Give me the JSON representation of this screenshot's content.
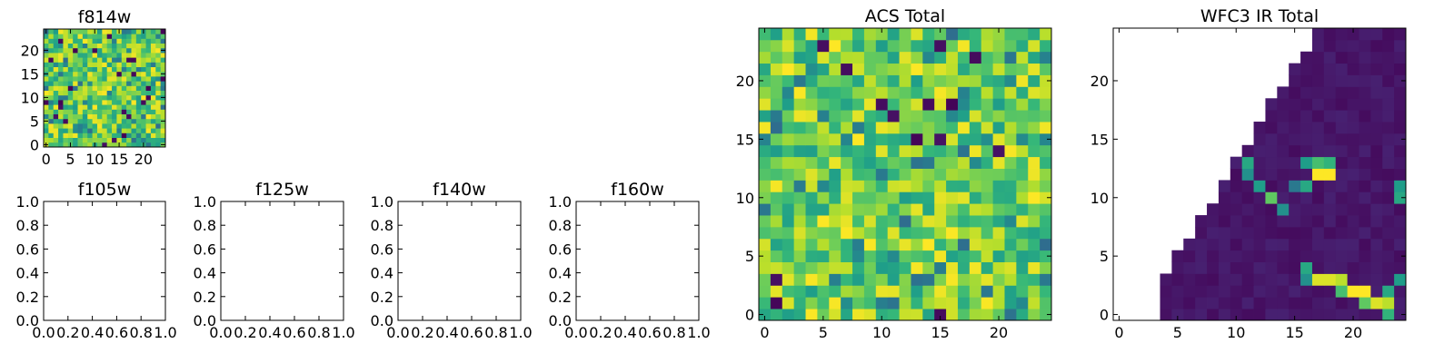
{
  "chart_data": [
    {
      "id": "f814w",
      "type": "heatmap",
      "title": "f814w",
      "colormap": "viridis",
      "xlim": [
        -0.5,
        24.5
      ],
      "ylim": [
        -0.5,
        24.5
      ],
      "xticks": [
        0,
        5,
        10,
        15,
        20
      ],
      "yticks": [
        0,
        5,
        10,
        15,
        20
      ],
      "grid_size": 25,
      "value_range": [
        0,
        1
      ],
      "pattern": "noise",
      "seed": 17
    },
    {
      "id": "f105w",
      "type": "empty",
      "title": "f105w",
      "xlim": [
        0,
        1
      ],
      "ylim": [
        0,
        1
      ],
      "xticks": [
        "0.0",
        "0.2",
        "0.4",
        "0.6",
        "0.8",
        "1.0"
      ],
      "yticks": [
        "0.0",
        "0.2",
        "0.4",
        "0.6",
        "0.8",
        "1.0"
      ]
    },
    {
      "id": "f125w",
      "type": "empty",
      "title": "f125w",
      "xlim": [
        0,
        1
      ],
      "ylim": [
        0,
        1
      ],
      "xticks": [
        "0.0",
        "0.2",
        "0.4",
        "0.6",
        "0.8",
        "1.0"
      ],
      "yticks": [
        "0.0",
        "0.2",
        "0.4",
        "0.6",
        "0.8",
        "1.0"
      ]
    },
    {
      "id": "f140w",
      "type": "empty",
      "title": "f140w",
      "xlim": [
        0,
        1
      ],
      "ylim": [
        0,
        1
      ],
      "xticks": [
        "0.0",
        "0.2",
        "0.4",
        "0.6",
        "0.8",
        "1.0"
      ],
      "yticks": [
        "0.0",
        "0.2",
        "0.4",
        "0.6",
        "0.8",
        "1.0"
      ]
    },
    {
      "id": "f160w",
      "type": "empty",
      "title": "f160w",
      "xlim": [
        0,
        1
      ],
      "ylim": [
        0,
        1
      ],
      "xticks": [
        "0.0",
        "0.2",
        "0.4",
        "0.6",
        "0.8",
        "1.0"
      ],
      "yticks": [
        "0.0",
        "0.2",
        "0.4",
        "0.6",
        "0.8",
        "1.0"
      ]
    },
    {
      "id": "acs_total",
      "type": "heatmap",
      "title": "ACS Total",
      "colormap": "viridis",
      "xlim": [
        -0.5,
        24.5
      ],
      "ylim": [
        -0.5,
        24.5
      ],
      "xticks": [
        0,
        5,
        10,
        15,
        20
      ],
      "yticks": [
        0,
        5,
        10,
        15,
        20
      ],
      "grid_size": 25,
      "value_range": [
        0,
        1
      ],
      "pattern": "noise",
      "seed": 42
    },
    {
      "id": "wfc3_ir_total",
      "type": "heatmap",
      "title": "WFC3 IR Total",
      "colormap": "viridis",
      "xlim": [
        -0.5,
        24.5
      ],
      "ylim": [
        -0.5,
        24.5
      ],
      "xticks": [
        0,
        5,
        10,
        15,
        20
      ],
      "yticks": [
        0,
        5,
        10,
        15,
        20
      ],
      "grid_size": 25,
      "value_range": [
        0,
        1
      ],
      "pattern": "masked-wedge",
      "mask_boundary_x_by_row": [
        4,
        4,
        4,
        4,
        5,
        5,
        6,
        7,
        7,
        8,
        9,
        9,
        10,
        10,
        11,
        12,
        12,
        13,
        13,
        14,
        15,
        15,
        16,
        17,
        17
      ],
      "bright_cells": [
        {
          "x": 10,
          "y": 14,
          "v": 0.45
        },
        {
          "x": 11,
          "y": 13,
          "v": 0.6
        },
        {
          "x": 11,
          "y": 12,
          "v": 0.5
        },
        {
          "x": 12,
          "y": 11,
          "v": 0.55
        },
        {
          "x": 13,
          "y": 10,
          "v": 0.75
        },
        {
          "x": 14,
          "y": 9,
          "v": 0.5
        },
        {
          "x": 16,
          "y": 13,
          "v": 0.55
        },
        {
          "x": 17,
          "y": 13,
          "v": 0.7
        },
        {
          "x": 17,
          "y": 12,
          "v": 1.0
        },
        {
          "x": 18,
          "y": 12,
          "v": 1.0
        },
        {
          "x": 18,
          "y": 13,
          "v": 0.65
        },
        {
          "x": 16,
          "y": 11,
          "v": 0.6
        },
        {
          "x": 15,
          "y": 11,
          "v": 0.4
        },
        {
          "x": 24,
          "y": 11,
          "v": 0.55
        },
        {
          "x": 24,
          "y": 10,
          "v": 0.6
        },
        {
          "x": 16,
          "y": 4,
          "v": 0.6
        },
        {
          "x": 16,
          "y": 3,
          "v": 0.5
        },
        {
          "x": 17,
          "y": 3,
          "v": 0.95
        },
        {
          "x": 18,
          "y": 3,
          "v": 0.95
        },
        {
          "x": 19,
          "y": 3,
          "v": 0.9
        },
        {
          "x": 19,
          "y": 2,
          "v": 0.7
        },
        {
          "x": 20,
          "y": 2,
          "v": 1.0
        },
        {
          "x": 21,
          "y": 2,
          "v": 1.0
        },
        {
          "x": 22,
          "y": 1,
          "v": 0.95
        },
        {
          "x": 23,
          "y": 1,
          "v": 0.9
        },
        {
          "x": 23,
          "y": 2,
          "v": 0.6
        },
        {
          "x": 24,
          "y": 3,
          "v": 0.55
        },
        {
          "x": 23,
          "y": 0,
          "v": 0.65
        },
        {
          "x": 21,
          "y": 1,
          "v": 0.75
        }
      ],
      "background_value": 0.03
    }
  ]
}
